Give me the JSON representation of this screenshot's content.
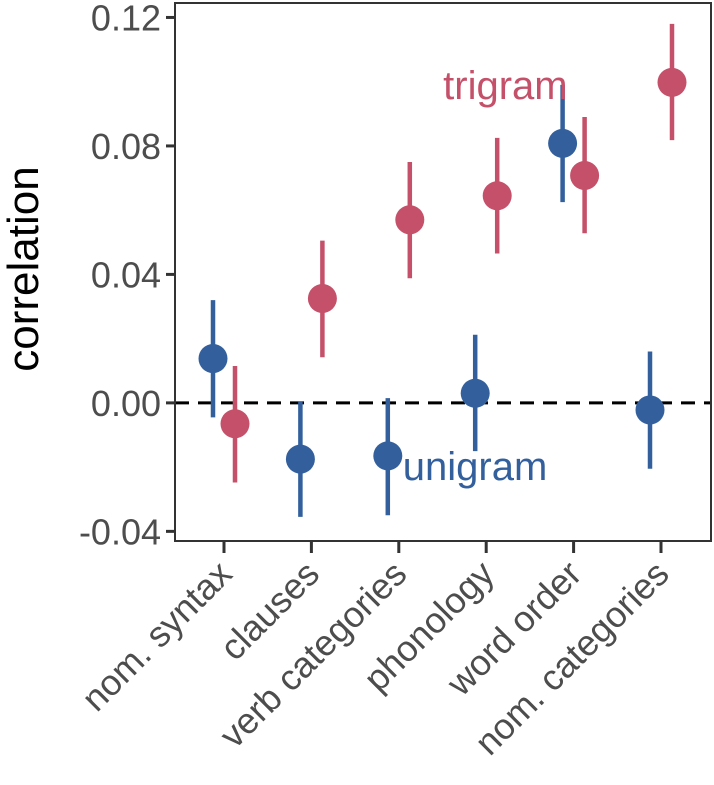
{
  "chart_data": {
    "type": "scatter",
    "title": "",
    "xlabel": "",
    "ylabel": "correlation",
    "ylim": [
      -0.043,
      0.1245
    ],
    "yticks": [
      -0.04,
      0.0,
      0.04,
      0.08,
      0.12
    ],
    "ytick_labels": [
      "-0.04",
      "0.00",
      "0.04",
      "0.08",
      "0.12"
    ],
    "categories": [
      "nom. syntax",
      "clauses",
      "verb categories",
      "phonology",
      "word order",
      "nom. categories"
    ],
    "reference_line": {
      "y": 0,
      "style": "dashed",
      "color": "#000000"
    },
    "grid": false,
    "series": [
      {
        "name": "unigram",
        "color": "#33609D",
        "label_near_category": "verb categories",
        "values": [
          0.0138,
          -0.0175,
          -0.0165,
          0.003,
          0.0808,
          -0.0022
        ],
        "lower": [
          -0.0045,
          -0.0355,
          -0.035,
          -0.015,
          0.0625,
          -0.0205
        ],
        "upper": [
          0.032,
          0.0005,
          0.0015,
          0.0212,
          0.099,
          0.016
        ]
      },
      {
        "name": "trigram",
        "color": "#C5506A",
        "label_near_category": "word order",
        "values": [
          -0.0065,
          0.0325,
          0.057,
          0.0645,
          0.0708,
          0.0998
        ],
        "lower": [
          -0.0248,
          0.0142,
          0.0388,
          0.0465,
          0.0528,
          0.0818
        ],
        "upper": [
          0.0115,
          0.0505,
          0.075,
          0.0825,
          0.089,
          0.118
        ]
      }
    ]
  }
}
